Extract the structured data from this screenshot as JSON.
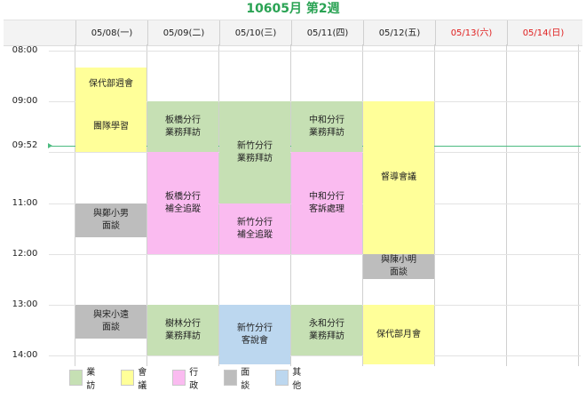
{
  "title": "10605月 第2週",
  "days": [
    {
      "label": "05/08(一)",
      "color": "#222222"
    },
    {
      "label": "05/09(二)",
      "color": "#222222"
    },
    {
      "label": "05/10(三)",
      "color": "#222222"
    },
    {
      "label": "05/11(四)",
      "color": "#222222"
    },
    {
      "label": "05/12(五)",
      "color": "#222222"
    },
    {
      "label": "05/13(六)",
      "color": "#e02020"
    },
    {
      "label": "05/14(日)",
      "color": "#e02020"
    }
  ],
  "times": [
    "08:00",
    "09:00",
    "09:52",
    "11:00",
    "12:00",
    "13:00",
    "14:00"
  ],
  "current_time": "09:52",
  "events": [
    {
      "day": 0,
      "start": "08:20",
      "end": "09:00",
      "type": "meeting",
      "text": "保代部週會"
    },
    {
      "day": 0,
      "start": "09:00",
      "end": "10:00",
      "type": "meeting",
      "text": "團隊學習"
    },
    {
      "day": 0,
      "start": "11:00",
      "end": "11:40",
      "type": "interview",
      "text": "與鄭小男\n面談"
    },
    {
      "day": 0,
      "start": "13:00",
      "end": "13:40",
      "type": "interview",
      "text": "與宋小遠\n面談"
    },
    {
      "day": 1,
      "start": "09:00",
      "end": "10:00",
      "type": "visit",
      "text": "板橋分行\n業務拜訪"
    },
    {
      "day": 1,
      "start": "10:00",
      "end": "12:00",
      "type": "admin",
      "text": "板橋分行\n補全追蹤"
    },
    {
      "day": 1,
      "start": "13:00",
      "end": "14:00",
      "type": "visit",
      "text": "樹林分行\n業務拜訪"
    },
    {
      "day": 2,
      "start": "09:00",
      "end": "11:00",
      "type": "visit",
      "text": "新竹分行\n業務拜訪"
    },
    {
      "day": 2,
      "start": "11:00",
      "end": "12:00",
      "type": "admin",
      "text": "新竹分行\n補全追蹤"
    },
    {
      "day": 2,
      "start": "13:00",
      "end": "14:10",
      "type": "other",
      "text": "新竹分行\n客說會"
    },
    {
      "day": 3,
      "start": "09:00",
      "end": "10:00",
      "type": "visit",
      "text": "中和分行\n業務拜訪"
    },
    {
      "day": 3,
      "start": "10:00",
      "end": "12:00",
      "type": "admin",
      "text": "中和分行\n客訴處理"
    },
    {
      "day": 3,
      "start": "13:00",
      "end": "14:00",
      "type": "visit",
      "text": "永和分行\n業務拜訪"
    },
    {
      "day": 4,
      "start": "09:00",
      "end": "12:00",
      "type": "meeting",
      "text": "督導會議"
    },
    {
      "day": 4,
      "start": "12:00",
      "end": "12:30",
      "type": "interview",
      "text": "與陳小明\n面談"
    },
    {
      "day": 4,
      "start": "13:00",
      "end": "14:10",
      "type": "meeting",
      "text": "保代部月會"
    }
  ],
  "legend": [
    {
      "type": "visit",
      "label": "業訪",
      "color": "#c6e0b4"
    },
    {
      "type": "meeting",
      "label": "會議",
      "color": "#ffff99"
    },
    {
      "type": "admin",
      "label": "行政",
      "color": "#fabbf0"
    },
    {
      "type": "interview",
      "label": "面談",
      "color": "#bdbdbd"
    },
    {
      "type": "other",
      "label": "其他",
      "color": "#bcd7ef"
    }
  ],
  "colors": {
    "title": "#2aa354",
    "weekend": "#e02020",
    "now_line": "#4cbb80"
  }
}
